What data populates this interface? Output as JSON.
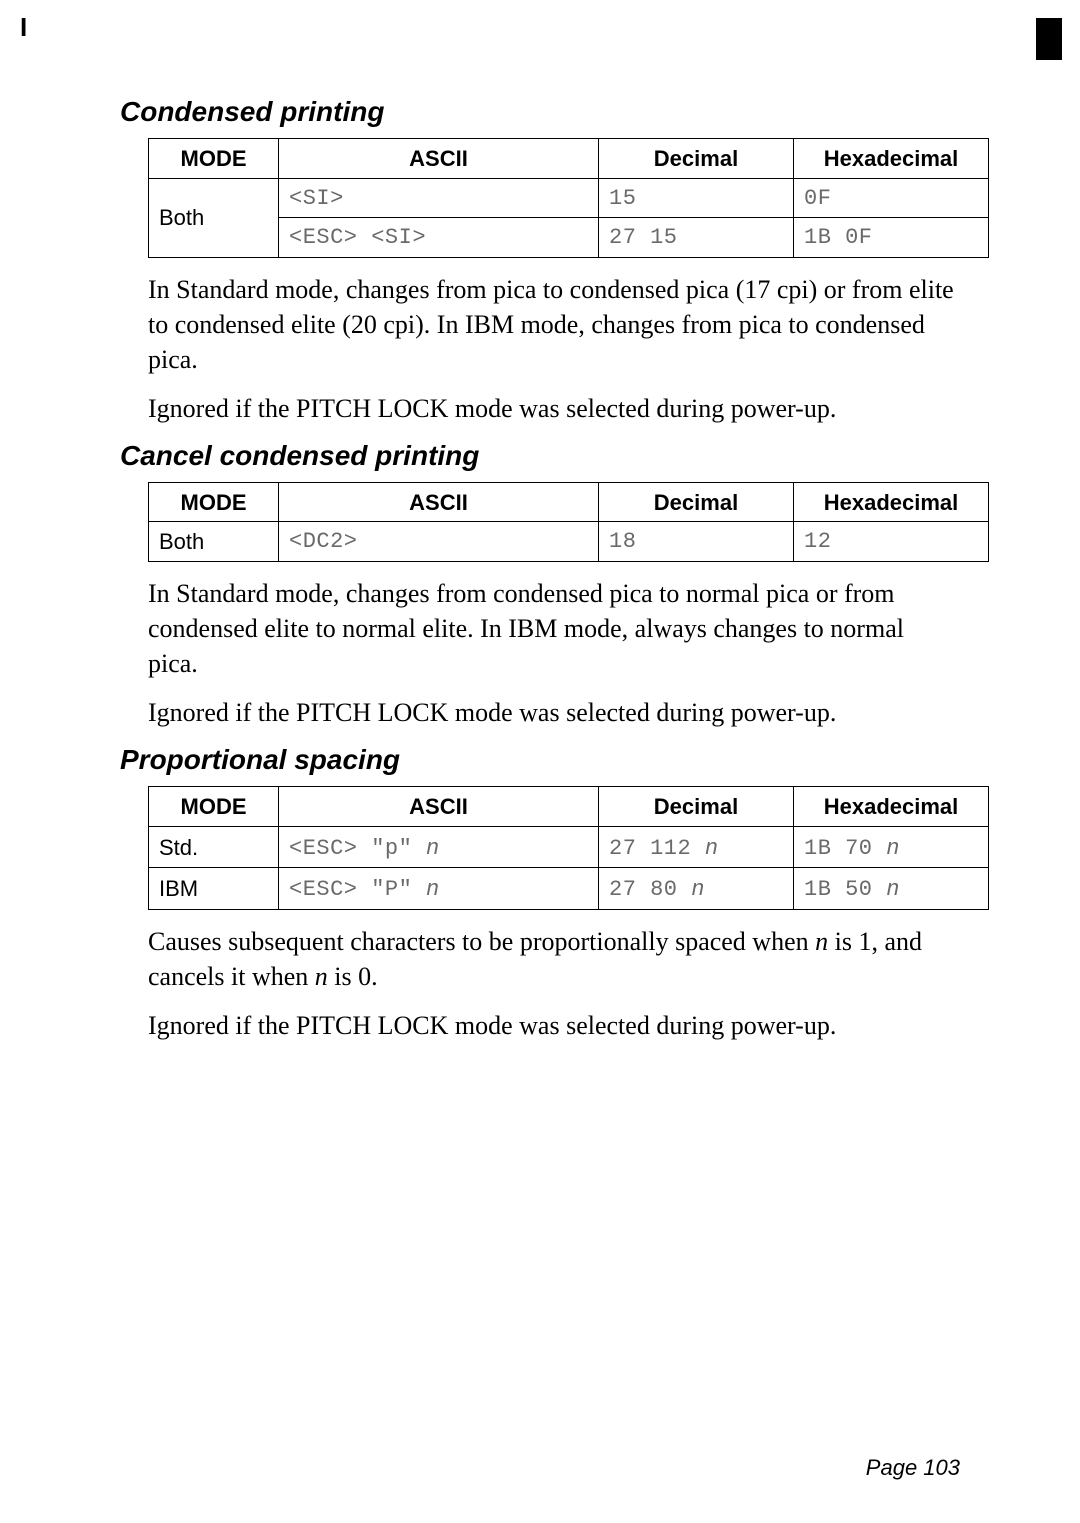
{
  "artifacts": {
    "top_left_mark": "I"
  },
  "sections": {
    "condensed": {
      "heading": "Condensed printing",
      "table": {
        "headers": {
          "mode": "MODE",
          "ascii": "ASCII",
          "decimal": "Decimal",
          "hex": "Hexadecimal"
        },
        "rows": {
          "r1": {
            "mode": "Both",
            "ascii": "<SI>",
            "decimal": "15",
            "hex": "0F"
          },
          "r2": {
            "ascii": "<ESC> <SI>",
            "decimal": "27 15",
            "hex": "1B 0F"
          }
        }
      },
      "para1": "In Standard mode, changes from pica to condensed pica (17 cpi) or from elite to condensed elite (20 cpi). In IBM mode, changes from pica to condensed pica.",
      "para2": "Ignored if the PITCH LOCK mode was selected during power-up."
    },
    "cancel": {
      "heading": "Cancel condensed printing",
      "table": {
        "headers": {
          "mode": "MODE",
          "ascii": "ASCII",
          "decimal": "Decimal",
          "hex": "Hexadecimal"
        },
        "rows": {
          "r1": {
            "mode": "Both",
            "ascii": "<DC2>",
            "decimal": "18",
            "hex": "12"
          }
        }
      },
      "para1": "In Standard mode, changes from condensed pica to normal pica or from condensed elite to normal elite. In IBM mode, always changes to normal pica.",
      "para2": "Ignored if the PITCH LOCK mode was selected during power-up."
    },
    "proportional": {
      "heading": "Proportional spacing",
      "table": {
        "headers": {
          "mode": "MODE",
          "ascii": "ASCII",
          "decimal": "Decimal",
          "hex": "Hexadecimal"
        },
        "rows": {
          "r1": {
            "mode": "Std.",
            "ascii_pre": "<ESC> \"p\" ",
            "ascii_post": "n",
            "dec_pre": "27 112 ",
            "dec_post": "n",
            "hex_pre": "1B 70 ",
            "hex_post": "n"
          },
          "r2": {
            "mode": "IBM",
            "ascii_pre": "<ESC> \"P\" ",
            "ascii_post": "n",
            "dec_pre": "27 80 ",
            "dec_post": "n",
            "hex_pre": "1B 50 ",
            "hex_post": "n"
          }
        }
      },
      "para1_a": "Causes subsequent characters to be proportionally spaced when ",
      "para1_n1": "n",
      "para1_b": " is 1, and cancels it when ",
      "para1_n2": "n",
      "para1_c": " is 0.",
      "para2": "Ignored if the PITCH LOCK mode was selected during power-up."
    }
  },
  "page_label": "Page 103"
}
